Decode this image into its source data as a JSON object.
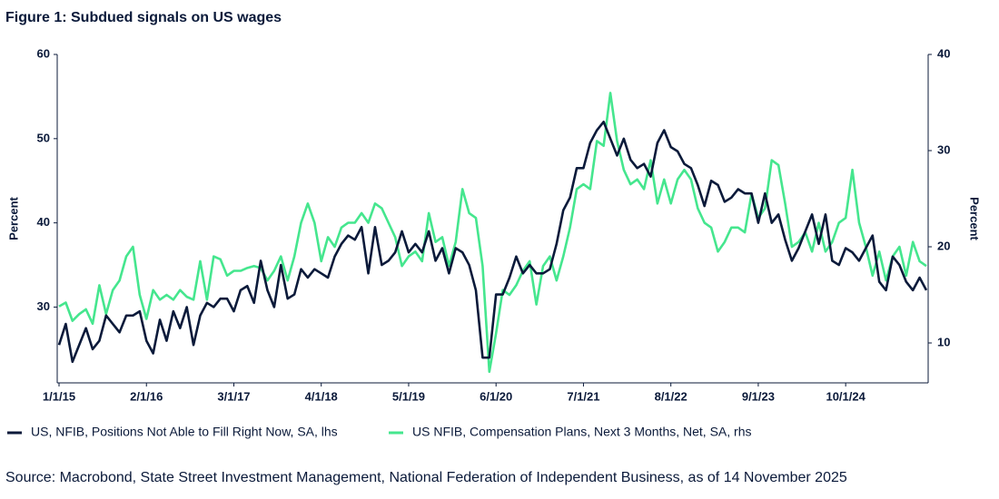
{
  "chart_data": {
    "type": "line",
    "title": "Figure 1: Subdued signals on US wages",
    "y_label": "Percent",
    "y2_label": "Percent",
    "source": "Source: Macrobond, State Street Investment Management, National Federation of Independent Business, as of 14 November 2025",
    "x": [
      "1/1/15",
      "2/1/15",
      "3/1/15",
      "4/1/15",
      "5/1/15",
      "6/1/15",
      "7/1/15",
      "8/1/15",
      "9/1/15",
      "10/1/15",
      "11/1/15",
      "12/1/15",
      "1/1/16",
      "2/1/16",
      "3/1/16",
      "4/1/16",
      "5/1/16",
      "6/1/16",
      "7/1/16",
      "8/1/16",
      "9/1/16",
      "10/1/16",
      "11/1/16",
      "12/1/16",
      "1/1/17",
      "2/1/17",
      "3/1/17",
      "4/1/17",
      "5/1/17",
      "6/1/17",
      "7/1/17",
      "8/1/17",
      "9/1/17",
      "10/1/17",
      "11/1/17",
      "12/1/17",
      "1/1/18",
      "2/1/18",
      "3/1/18",
      "4/1/18",
      "5/1/18",
      "6/1/18",
      "7/1/18",
      "8/1/18",
      "9/1/18",
      "10/1/18",
      "11/1/18",
      "12/1/18",
      "1/1/19",
      "2/1/19",
      "3/1/19",
      "4/1/19",
      "5/1/19",
      "6/1/19",
      "7/1/19",
      "8/1/19",
      "9/1/19",
      "10/1/19",
      "11/1/19",
      "12/1/19",
      "1/1/20",
      "2/1/20",
      "3/1/20",
      "4/1/20",
      "5/1/20",
      "6/1/20",
      "7/1/20",
      "8/1/20",
      "9/1/20",
      "10/1/20",
      "11/1/20",
      "12/1/20",
      "1/1/21",
      "2/1/21",
      "3/1/21",
      "4/1/21",
      "5/1/21",
      "6/1/21",
      "7/1/21",
      "8/1/21",
      "9/1/21",
      "10/1/21",
      "11/1/21",
      "12/1/21",
      "1/1/22",
      "2/1/22",
      "3/1/22",
      "4/1/22",
      "5/1/22",
      "6/1/22",
      "7/1/22",
      "8/1/22",
      "9/1/22",
      "10/1/22",
      "11/1/22",
      "12/1/22",
      "1/1/23",
      "2/1/23",
      "3/1/23",
      "4/1/23",
      "5/1/23",
      "6/1/23",
      "7/1/23",
      "8/1/23",
      "9/1/23",
      "10/1/23",
      "11/1/23",
      "12/1/23",
      "1/1/24",
      "2/1/24",
      "3/1/24",
      "4/1/24",
      "5/1/24",
      "6/1/24",
      "7/1/24",
      "8/1/24",
      "9/1/24",
      "10/1/24",
      "11/1/24",
      "12/1/24",
      "1/1/25",
      "2/1/25",
      "3/1/25",
      "4/1/25",
      "5/1/25",
      "6/1/25",
      "7/1/25",
      "8/1/25",
      "9/1/25",
      "10/1/25"
    ],
    "xticks": [
      "1/1/15",
      "2/1/16",
      "3/1/17",
      "4/1/18",
      "5/1/19",
      "6/1/20",
      "7/1/21",
      "8/1/22",
      "9/1/23",
      "10/1/24"
    ],
    "ylim": [
      21,
      60
    ],
    "yticks": [
      30,
      40,
      50,
      60
    ],
    "y2lim": [
      5.85,
      40
    ],
    "y2ticks": [
      10,
      20,
      30,
      40
    ],
    "grid": false,
    "series": [
      {
        "name": "US, NFIB, Positions Not Able to Fill Right Now, SA, lhs",
        "color": "#0b1a3a",
        "axis": "y",
        "values": [
          25.5,
          28,
          23.5,
          25.5,
          27.5,
          25,
          26,
          29,
          28,
          27,
          29,
          29,
          29.5,
          26,
          24.5,
          28.5,
          26,
          29.5,
          27.5,
          30,
          25.5,
          29,
          30.5,
          30,
          31,
          31,
          29.5,
          32,
          32.5,
          30.5,
          35.5,
          32,
          30,
          35,
          31,
          31.5,
          34.5,
          33.5,
          34.5,
          34,
          33.5,
          36,
          37.5,
          38.5,
          38,
          39.5,
          34,
          39.5,
          35,
          35.5,
          36.5,
          39,
          36.5,
          37.5,
          36.5,
          39,
          35.5,
          37,
          34,
          37,
          36.5,
          35,
          32,
          24,
          24,
          31.5,
          31.5,
          33.5,
          36,
          34,
          35,
          34,
          34,
          34.5,
          37.5,
          41.5,
          43,
          46.5,
          46.5,
          49.5,
          51,
          52,
          50,
          48,
          50,
          47.5,
          46.5,
          47,
          45.5,
          49.5,
          51,
          49,
          48.5,
          47,
          46.5,
          44.5,
          42,
          45,
          44.5,
          42.5,
          43,
          44,
          43.5,
          43.5,
          40,
          43.5,
          40,
          41,
          38,
          35.5,
          37,
          39,
          41,
          37.5,
          41,
          35.5,
          35,
          37,
          36.5,
          35.5,
          37,
          38.5,
          33,
          32,
          36,
          35,
          33,
          32,
          33.5,
          32
        ]
      },
      {
        "name": "US NFIB, Compensation Plans, Next 3 Months, Net, SA, rhs",
        "color": "#45e68e",
        "axis": "y2",
        "values": [
          13.8,
          14.2,
          12.3,
          13,
          13.5,
          12,
          16,
          13,
          15.5,
          16.5,
          19,
          20,
          15,
          12.5,
          15.5,
          14.5,
          15,
          14.5,
          15.5,
          14.8,
          14.5,
          18.5,
          14.5,
          19,
          18.7,
          17,
          17.5,
          17.5,
          17.8,
          18,
          17.8,
          16.5,
          17.5,
          19,
          16.5,
          19,
          22.5,
          24.5,
          22.5,
          18.5,
          21,
          20,
          22,
          22.5,
          22.5,
          23.5,
          22.5,
          24.5,
          24,
          22.5,
          21,
          18,
          19,
          19.5,
          18.5,
          23.5,
          20.5,
          21,
          18,
          20.5,
          26,
          23.5,
          23,
          18,
          7,
          11,
          15.5,
          15,
          16,
          17.5,
          18.5,
          14,
          18,
          19,
          16.5,
          19,
          22,
          26,
          26.5,
          26,
          31,
          30.5,
          36,
          31,
          28,
          26.5,
          27,
          26,
          29,
          24.5,
          27,
          24.5,
          27,
          28,
          27,
          24,
          22.5,
          22,
          19.5,
          20.5,
          22,
          22,
          21.5,
          25.5,
          23,
          24,
          29,
          28.5,
          24.5,
          20,
          20.5,
          21.5,
          19.5,
          22.5,
          19.5,
          20.5,
          22.5,
          23,
          28,
          22.5,
          20,
          17,
          19.5,
          16.5,
          19,
          20,
          17,
          20.5,
          18.5,
          18
        ]
      }
    ]
  }
}
